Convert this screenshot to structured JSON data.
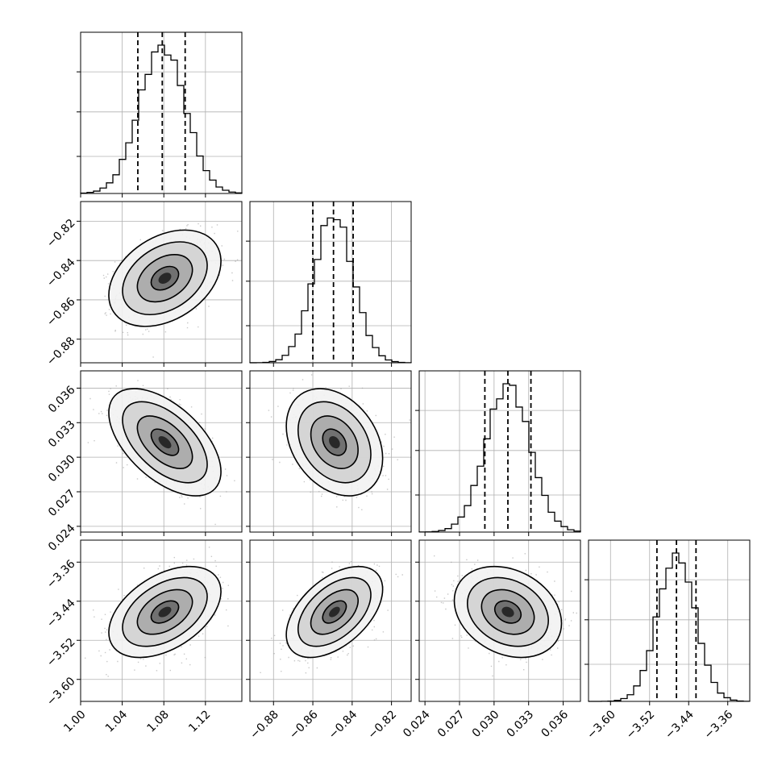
{
  "chart_data": {
    "type": "corner",
    "parameters": [
      {
        "name": "",
        "range": [
          1.0,
          1.155
        ],
        "ticks": [
          1.0,
          1.04,
          1.08,
          1.12
        ],
        "tick_labels": [
          "1.00",
          "1.04",
          "1.08",
          "1.12"
        ],
        "quantiles": [
          1.055,
          1.0785,
          1.1005
        ],
        "sigma": 0.022
      },
      {
        "name": "",
        "range": [
          -0.892,
          -0.81
        ],
        "ticks": [
          -0.88,
          -0.86,
          -0.84,
          -0.82
        ],
        "tick_labels": [
          "−0.88",
          "−0.86",
          "−0.84",
          "−0.82"
        ],
        "quantiles": [
          -0.86,
          -0.8495,
          -0.8395
        ],
        "sigma": 0.01
      },
      {
        "name": "",
        "range": [
          0.0235,
          0.0375
        ],
        "ticks": [
          0.024,
          0.027,
          0.03,
          0.033,
          0.036
        ],
        "tick_labels": [
          "0.024",
          "0.027",
          "0.030",
          "0.033",
          "0.036"
        ],
        "quantiles": [
          0.0292,
          0.0312,
          0.0332
        ],
        "sigma": 0.0019
      },
      {
        "name": "",
        "range": [
          -3.645,
          -3.315
        ],
        "ticks": [
          -3.6,
          -3.52,
          -3.44,
          -3.36
        ],
        "tick_labels": [
          "−3.60",
          "−3.52",
          "−3.44",
          "−3.36"
        ],
        "quantiles": [
          -3.505,
          -3.465,
          -3.425
        ],
        "sigma": 0.038
      }
    ],
    "pairs": [
      {
        "row": 1,
        "col": 0,
        "center": [
          1.081,
          -0.849
        ],
        "corr": 0.35
      },
      {
        "row": 2,
        "col": 0,
        "center": [
          1.081,
          0.0313
        ],
        "corr": -0.55
      },
      {
        "row": 2,
        "col": 1,
        "center": [
          -0.849,
          0.0313
        ],
        "corr": -0.3
      },
      {
        "row": 3,
        "col": 0,
        "center": [
          1.081,
          -3.462
        ],
        "corr": 0.45
      },
      {
        "row": 3,
        "col": 1,
        "center": [
          -0.849,
          -3.462
        ],
        "corr": 0.5
      },
      {
        "row": 3,
        "col": 2,
        "center": [
          0.0312,
          -3.462
        ],
        "corr": -0.25
      }
    ],
    "grid": true,
    "colors": {
      "line": "#000000",
      "grid": "#b0b0b0",
      "points": "#9a9a9a"
    }
  }
}
